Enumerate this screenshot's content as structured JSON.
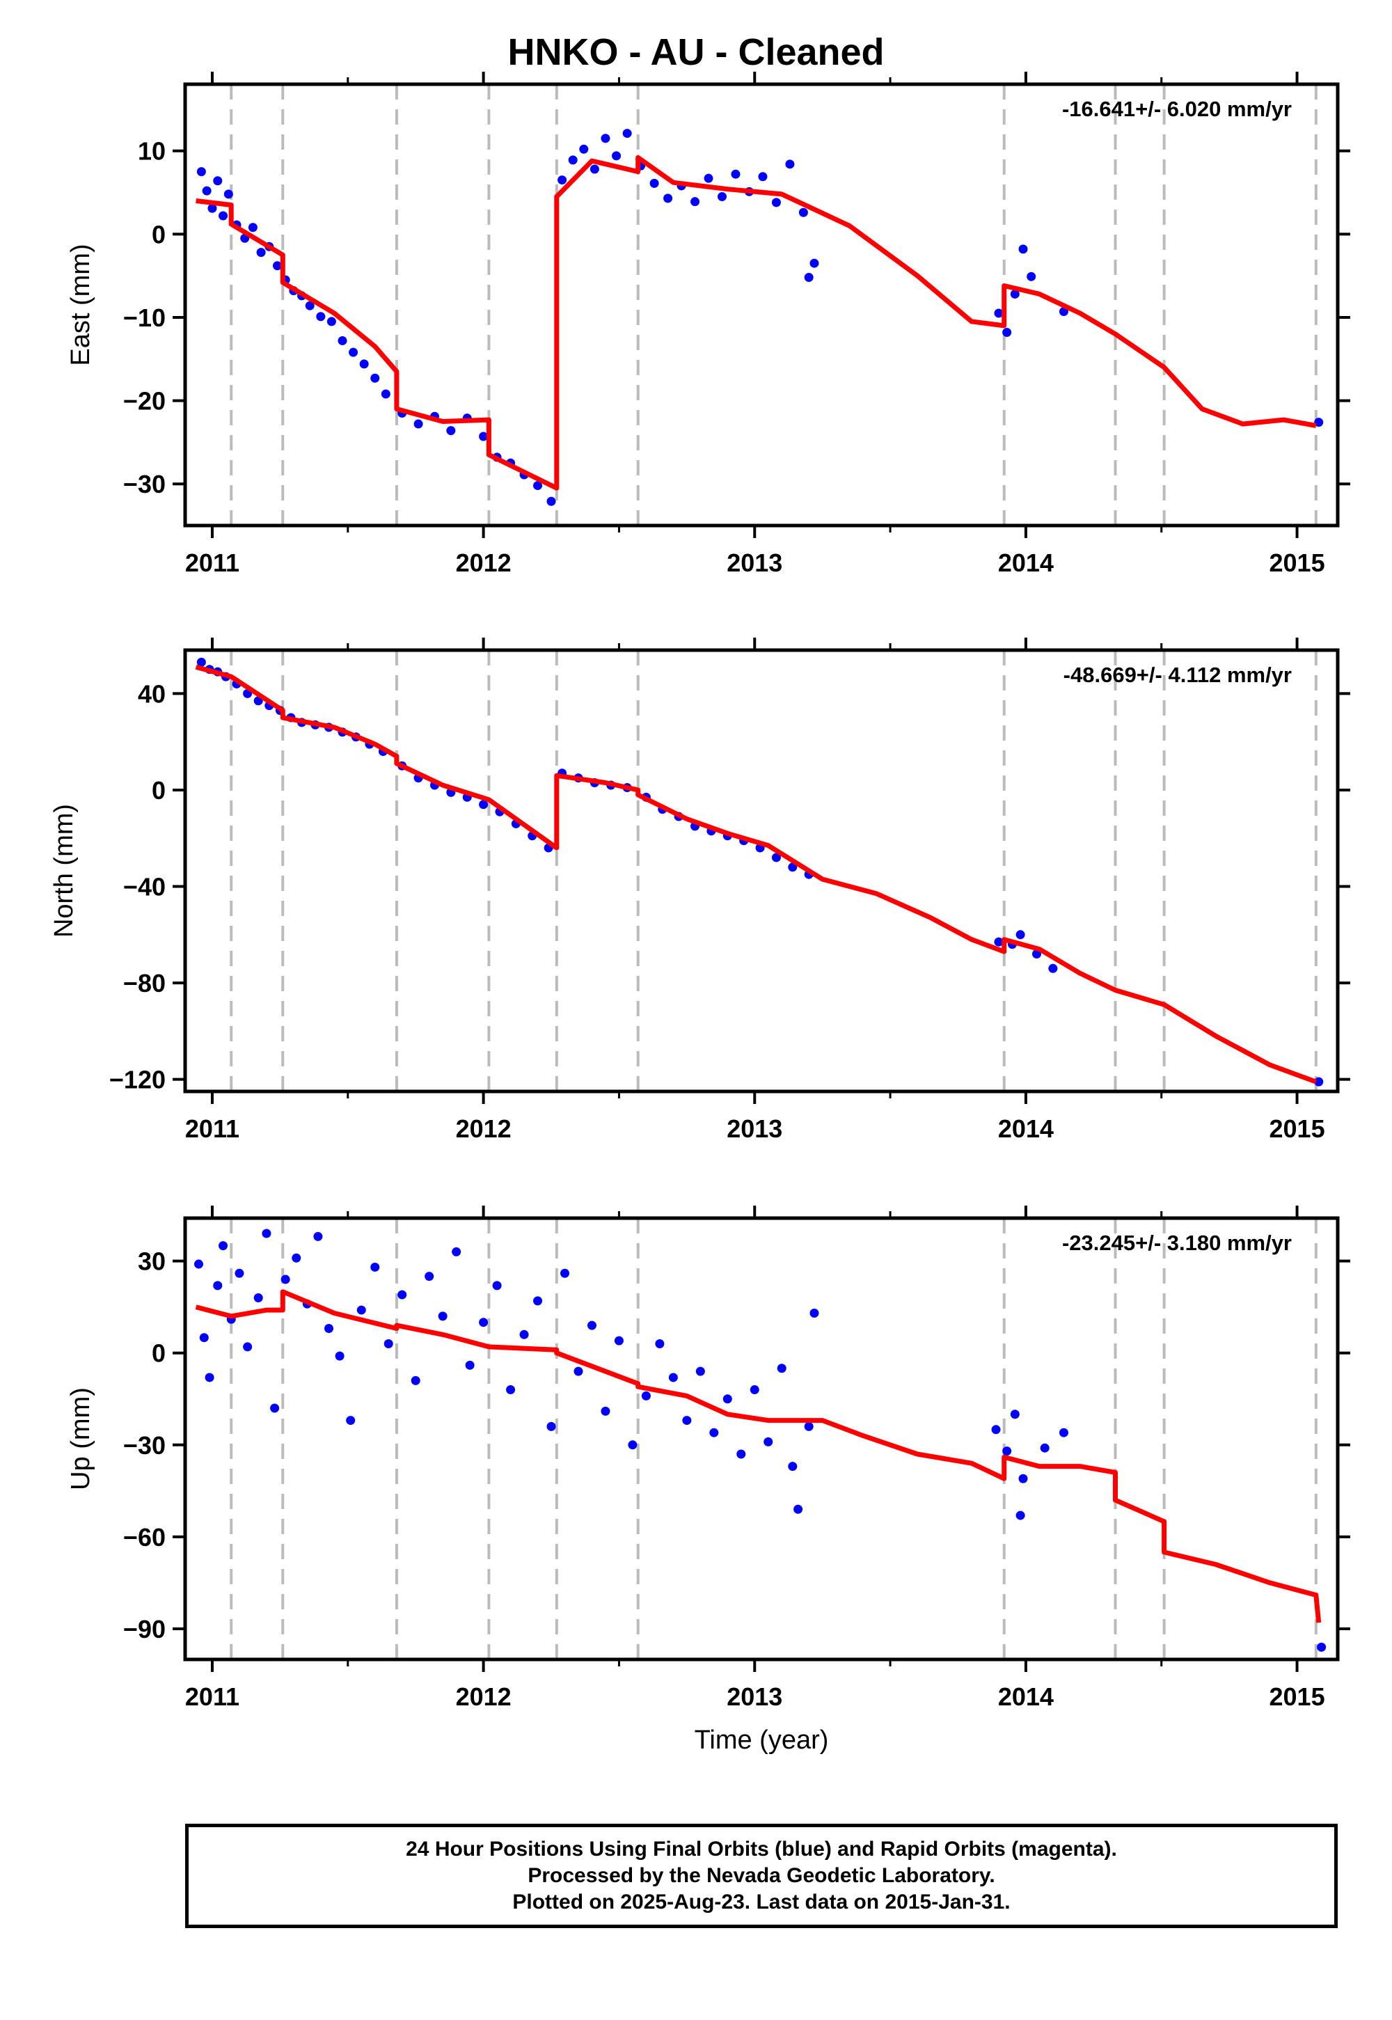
{
  "title": "HNKO  - AU - Cleaned",
  "footer": {
    "lines": [
      "24 Hour Positions Using Final Orbits (blue) and Rapid Orbits (magenta).",
      "Processed by the Nevada Geodetic Laboratory.",
      "Plotted on 2025-Aug-23. Last data on 2015-Jan-31."
    ]
  },
  "colors": {
    "data": "#0000ff",
    "model": "#ff0000",
    "steps": "#bbbbbb",
    "frame": "#000000"
  },
  "chart_data": [
    {
      "type": "scatter",
      "ylabel": "East (mm)",
      "xlabel": "",
      "rate": "-16.641+/- 6.020 mm/yr",
      "xlim": [
        2010.9,
        2015.15
      ],
      "ylim": [
        -35,
        18
      ],
      "xticks": [
        "2011",
        "2012",
        "2013",
        "2014",
        "2015"
      ],
      "yticks": [
        10,
        0,
        -10,
        -20,
        -30
      ],
      "steps": [
        2011.07,
        2011.26,
        2011.68,
        2012.02,
        2012.27,
        2012.57,
        2013.92,
        2014.33,
        2014.51,
        2015.07
      ],
      "model_segments": [
        [
          [
            2010.94,
            4
          ],
          [
            2011.07,
            3.5
          ],
          [
            2011.07,
            1.2
          ],
          [
            2011.26,
            -2.5
          ],
          [
            2011.26,
            -5.8
          ],
          [
            2011.45,
            -9.5
          ],
          [
            2011.6,
            -13.5
          ],
          [
            2011.68,
            -16.5
          ],
          [
            2011.68,
            -21
          ],
          [
            2011.85,
            -22.5
          ],
          [
            2012.02,
            -22.3
          ],
          [
            2012.02,
            -26.5
          ],
          [
            2012.27,
            -30.5
          ],
          [
            2012.27,
            4.5
          ],
          [
            2012.4,
            8.8
          ],
          [
            2012.57,
            7.5
          ],
          [
            2012.57,
            9.2
          ],
          [
            2012.7,
            6.2
          ],
          [
            2012.9,
            5.4
          ],
          [
            2013.1,
            4.8
          ],
          [
            2013.35,
            1
          ],
          [
            2013.6,
            -5
          ],
          [
            2013.8,
            -10.5
          ],
          [
            2013.92,
            -11
          ],
          [
            2013.92,
            -6.2
          ],
          [
            2014.05,
            -7.2
          ],
          [
            2014.2,
            -9.5
          ],
          [
            2014.33,
            -12
          ],
          [
            2014.51,
            -16
          ],
          [
            2014.65,
            -21
          ],
          [
            2014.8,
            -22.8
          ],
          [
            2014.95,
            -22.3
          ],
          [
            2015.07,
            -23
          ]
        ]
      ],
      "points": [
        [
          2010.96,
          7.5
        ],
        [
          2010.98,
          5.2
        ],
        [
          2011.0,
          3.1
        ],
        [
          2011.02,
          6.4
        ],
        [
          2011.04,
          2.2
        ],
        [
          2011.06,
          4.8
        ],
        [
          2011.09,
          1.1
        ],
        [
          2011.12,
          -0.5
        ],
        [
          2011.15,
          0.8
        ],
        [
          2011.18,
          -2.2
        ],
        [
          2011.21,
          -1.5
        ],
        [
          2011.24,
          -3.8
        ],
        [
          2011.27,
          -5.5
        ],
        [
          2011.3,
          -6.8
        ],
        [
          2011.33,
          -7.4
        ],
        [
          2011.36,
          -8.6
        ],
        [
          2011.4,
          -9.9
        ],
        [
          2011.44,
          -10.5
        ],
        [
          2011.48,
          -12.8
        ],
        [
          2011.52,
          -14.2
        ],
        [
          2011.56,
          -15.6
        ],
        [
          2011.6,
          -17.3
        ],
        [
          2011.64,
          -19.2
        ],
        [
          2011.7,
          -21.5
        ],
        [
          2011.76,
          -22.8
        ],
        [
          2011.82,
          -21.9
        ],
        [
          2011.88,
          -23.6
        ],
        [
          2011.94,
          -22.1
        ],
        [
          2012.0,
          -24.3
        ],
        [
          2012.05,
          -26.8
        ],
        [
          2012.1,
          -27.5
        ],
        [
          2012.15,
          -28.9
        ],
        [
          2012.2,
          -30.2
        ],
        [
          2012.25,
          -32.1
        ],
        [
          2012.29,
          6.5
        ],
        [
          2012.33,
          8.9
        ],
        [
          2012.37,
          10.2
        ],
        [
          2012.41,
          7.8
        ],
        [
          2012.45,
          11.5
        ],
        [
          2012.49,
          9.4
        ],
        [
          2012.53,
          12.1
        ],
        [
          2012.58,
          8.2
        ],
        [
          2012.63,
          6.1
        ],
        [
          2012.68,
          4.3
        ],
        [
          2012.73,
          5.8
        ],
        [
          2012.78,
          3.9
        ],
        [
          2012.83,
          6.7
        ],
        [
          2012.88,
          4.5
        ],
        [
          2012.93,
          7.2
        ],
        [
          2012.98,
          5.1
        ],
        [
          2013.03,
          6.9
        ],
        [
          2013.08,
          3.8
        ],
        [
          2013.13,
          8.4
        ],
        [
          2013.18,
          2.6
        ],
        [
          2013.22,
          -3.5
        ],
        [
          2013.2,
          -5.2
        ],
        [
          2013.9,
          -9.5
        ],
        [
          2013.93,
          -11.8
        ],
        [
          2013.96,
          -7.2
        ],
        [
          2013.99,
          -1.8
        ],
        [
          2014.02,
          -5.1
        ],
        [
          2014.14,
          -9.3
        ],
        [
          2015.08,
          -22.6
        ]
      ]
    },
    {
      "type": "scatter",
      "ylabel": "North (mm)",
      "xlabel": "",
      "rate": "-48.669+/- 4.112 mm/yr",
      "xlim": [
        2010.9,
        2015.15
      ],
      "ylim": [
        -125,
        58
      ],
      "xticks": [
        "2011",
        "2012",
        "2013",
        "2014",
        "2015"
      ],
      "yticks": [
        40,
        0,
        -40,
        -80,
        -120
      ],
      "steps": [
        2011.07,
        2011.26,
        2011.68,
        2012.02,
        2012.27,
        2012.57,
        2013.92,
        2014.33,
        2014.51,
        2015.07
      ],
      "model_segments": [
        [
          [
            2010.94,
            51
          ],
          [
            2011.07,
            47
          ],
          [
            2011.26,
            33
          ],
          [
            2011.26,
            30
          ],
          [
            2011.45,
            26
          ],
          [
            2011.6,
            19
          ],
          [
            2011.68,
            14
          ],
          [
            2011.68,
            11
          ],
          [
            2011.85,
            2
          ],
          [
            2012.02,
            -4
          ],
          [
            2012.27,
            -24
          ],
          [
            2012.27,
            6
          ],
          [
            2012.45,
            3
          ],
          [
            2012.57,
            0
          ],
          [
            2012.57,
            -2
          ],
          [
            2012.75,
            -12
          ],
          [
            2012.9,
            -18
          ],
          [
            2013.05,
            -23
          ],
          [
            2013.25,
            -37
          ],
          [
            2013.45,
            -43
          ],
          [
            2013.65,
            -53
          ],
          [
            2013.8,
            -62
          ],
          [
            2013.92,
            -67
          ],
          [
            2013.92,
            -62
          ],
          [
            2014.05,
            -66
          ],
          [
            2014.2,
            -76
          ],
          [
            2014.33,
            -83
          ],
          [
            2014.51,
            -89
          ],
          [
            2014.7,
            -102
          ],
          [
            2014.9,
            -114
          ],
          [
            2015.07,
            -121
          ]
        ]
      ],
      "points": [
        [
          2010.96,
          53
        ],
        [
          2010.99,
          50
        ],
        [
          2011.02,
          49
        ],
        [
          2011.05,
          47
        ],
        [
          2011.09,
          44
        ],
        [
          2011.13,
          40
        ],
        [
          2011.17,
          37
        ],
        [
          2011.21,
          35
        ],
        [
          2011.25,
          33
        ],
        [
          2011.29,
          30
        ],
        [
          2011.33,
          28
        ],
        [
          2011.38,
          27
        ],
        [
          2011.43,
          26
        ],
        [
          2011.48,
          24
        ],
        [
          2011.53,
          22
        ],
        [
          2011.58,
          19
        ],
        [
          2011.63,
          16
        ],
        [
          2011.7,
          10
        ],
        [
          2011.76,
          5
        ],
        [
          2011.82,
          2
        ],
        [
          2011.88,
          -1
        ],
        [
          2011.94,
          -3
        ],
        [
          2012.0,
          -6
        ],
        [
          2012.06,
          -9
        ],
        [
          2012.12,
          -14
        ],
        [
          2012.18,
          -19
        ],
        [
          2012.24,
          -24
        ],
        [
          2012.29,
          7
        ],
        [
          2012.35,
          5
        ],
        [
          2012.41,
          3
        ],
        [
          2012.47,
          2
        ],
        [
          2012.53,
          1
        ],
        [
          2012.6,
          -3
        ],
        [
          2012.66,
          -8
        ],
        [
          2012.72,
          -11
        ],
        [
          2012.78,
          -15
        ],
        [
          2012.84,
          -17
        ],
        [
          2012.9,
          -19
        ],
        [
          2012.96,
          -21
        ],
        [
          2013.02,
          -24
        ],
        [
          2013.08,
          -28
        ],
        [
          2013.14,
          -32
        ],
        [
          2013.2,
          -35
        ],
        [
          2013.9,
          -63
        ],
        [
          2013.95,
          -64
        ],
        [
          2013.98,
          -60
        ],
        [
          2014.04,
          -68
        ],
        [
          2014.1,
          -74
        ],
        [
          2015.08,
          -121
        ]
      ]
    },
    {
      "type": "scatter",
      "ylabel": "Up (mm)",
      "xlabel": "Time (year)",
      "rate": "-23.245+/- 3.180 mm/yr",
      "xlim": [
        2010.9,
        2015.15
      ],
      "ylim": [
        -100,
        44
      ],
      "xticks": [
        "2011",
        "2012",
        "2013",
        "2014",
        "2015"
      ],
      "yticks": [
        30,
        0,
        -30,
        -60,
        -90
      ],
      "steps": [
        2011.07,
        2011.26,
        2011.68,
        2012.02,
        2012.27,
        2012.57,
        2013.92,
        2014.33,
        2014.51,
        2015.07
      ],
      "model_segments": [
        [
          [
            2010.94,
            15
          ],
          [
            2011.07,
            12
          ],
          [
            2011.2,
            14
          ],
          [
            2011.26,
            14
          ],
          [
            2011.26,
            20
          ],
          [
            2011.45,
            13
          ],
          [
            2011.68,
            8
          ],
          [
            2011.68,
            9
          ],
          [
            2011.85,
            6
          ],
          [
            2012.02,
            2
          ],
          [
            2012.27,
            1
          ],
          [
            2012.27,
            0
          ],
          [
            2012.57,
            -10
          ],
          [
            2012.57,
            -11
          ],
          [
            2012.75,
            -14
          ],
          [
            2012.9,
            -20
          ],
          [
            2013.05,
            -22
          ],
          [
            2013.25,
            -22
          ],
          [
            2013.4,
            -27
          ],
          [
            2013.6,
            -33
          ],
          [
            2013.8,
            -36
          ],
          [
            2013.92,
            -41
          ],
          [
            2013.92,
            -34
          ],
          [
            2014.05,
            -37
          ],
          [
            2014.2,
            -37
          ],
          [
            2014.33,
            -39
          ],
          [
            2014.33,
            -48
          ],
          [
            2014.51,
            -55
          ],
          [
            2014.51,
            -65
          ],
          [
            2014.7,
            -69
          ],
          [
            2014.9,
            -75
          ],
          [
            2015.07,
            -79
          ],
          [
            2015.08,
            -88
          ]
        ]
      ],
      "points": [
        [
          2010.95,
          29
        ],
        [
          2010.97,
          5
        ],
        [
          2010.99,
          -8
        ],
        [
          2011.02,
          22
        ],
        [
          2011.04,
          35
        ],
        [
          2011.07,
          11
        ],
        [
          2011.1,
          26
        ],
        [
          2011.13,
          2
        ],
        [
          2011.17,
          18
        ],
        [
          2011.2,
          39
        ],
        [
          2011.23,
          -18
        ],
        [
          2011.27,
          24
        ],
        [
          2011.31,
          31
        ],
        [
          2011.35,
          16
        ],
        [
          2011.39,
          38
        ],
        [
          2011.43,
          8
        ],
        [
          2011.47,
          -1
        ],
        [
          2011.51,
          -22
        ],
        [
          2011.55,
          14
        ],
        [
          2011.6,
          28
        ],
        [
          2011.65,
          3
        ],
        [
          2011.7,
          19
        ],
        [
          2011.75,
          -9
        ],
        [
          2011.8,
          25
        ],
        [
          2011.85,
          12
        ],
        [
          2011.9,
          33
        ],
        [
          2011.95,
          -4
        ],
        [
          2012.0,
          10
        ],
        [
          2012.05,
          22
        ],
        [
          2012.1,
          -12
        ],
        [
          2012.15,
          6
        ],
        [
          2012.2,
          17
        ],
        [
          2012.25,
          -24
        ],
        [
          2012.3,
          26
        ],
        [
          2012.35,
          -6
        ],
        [
          2012.4,
          9
        ],
        [
          2012.45,
          -19
        ],
        [
          2012.5,
          4
        ],
        [
          2012.55,
          -30
        ],
        [
          2012.6,
          -14
        ],
        [
          2012.65,
          3
        ],
        [
          2012.7,
          -8
        ],
        [
          2012.75,
          -22
        ],
        [
          2012.8,
          -6
        ],
        [
          2012.85,
          -26
        ],
        [
          2012.9,
          -15
        ],
        [
          2012.95,
          -33
        ],
        [
          2013.0,
          -12
        ],
        [
          2013.05,
          -29
        ],
        [
          2013.1,
          -5
        ],
        [
          2013.14,
          -37
        ],
        [
          2013.16,
          -51
        ],
        [
          2013.2,
          -24
        ],
        [
          2013.22,
          13
        ],
        [
          2013.89,
          -25
        ],
        [
          2013.93,
          -32
        ],
        [
          2013.96,
          -20
        ],
        [
          2013.99,
          -41
        ],
        [
          2013.98,
          -53
        ],
        [
          2014.07,
          -31
        ],
        [
          2014.14,
          -26
        ],
        [
          2015.09,
          -96
        ]
      ]
    }
  ]
}
